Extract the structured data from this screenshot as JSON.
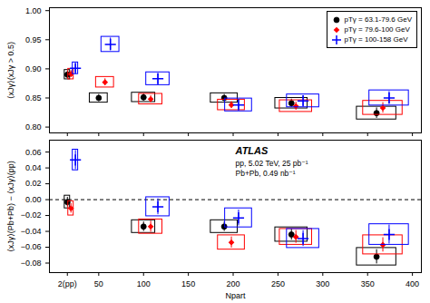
{
  "chart_data": [
    {
      "type": "scatter",
      "ylabel": "⟨xJγ⟩(xJγ > 0.5)",
      "xlim": [
        -5,
        410
      ],
      "xticks": [
        15,
        50,
        100,
        150,
        200,
        250,
        300,
        350,
        400
      ],
      "tick_labels": "y",
      "ylim": [
        0.79,
        1.005
      ],
      "yticks": [
        {
          "value": 0.8,
          "label": "0.80"
        },
        0.85,
        {
          "value": 0.9,
          "label": "0.90"
        },
        0.95,
        {
          "value": 1.0,
          "label": "1.00"
        }
      ],
      "grid": false,
      "legend": "upper right",
      "series": [
        {
          "name": "pTγ = 63.1-79.6 GeV",
          "color": "black",
          "marker": "circle",
          "x": [
            15,
            50,
            100,
            190,
            265,
            360
          ],
          "values": [
            0.89,
            0.85,
            0.851,
            0.85,
            0.841,
            0.824
          ],
          "yerr": [
            0.006,
            0.006,
            0.006,
            0.006,
            0.007,
            0.009
          ],
          "xerr": [
            3,
            10,
            13,
            15,
            18,
            22
          ],
          "box_half_height": [
            0.008,
            0.008,
            0.008,
            0.008,
            0.009,
            0.011
          ]
        },
        {
          "name": "pTγ = 79.6-100 GeV",
          "color": "red",
          "marker": "diamond",
          "x": [
            19,
            57,
            108,
            198,
            270,
            367
          ],
          "values": [
            0.891,
            0.877,
            0.848,
            0.838,
            0.836,
            0.833
          ],
          "yerr": [
            0.006,
            0.006,
            0.006,
            0.006,
            0.007,
            0.009
          ],
          "xerr": [
            3,
            10,
            13,
            15,
            18,
            22
          ],
          "box_half_height": [
            0.009,
            0.009,
            0.009,
            0.009,
            0.01,
            0.012
          ]
        },
        {
          "name": "pTγ = 100-158 GeV",
          "color": "blue",
          "marker": "plus",
          "x": [
            24,
            63,
            116,
            206,
            278,
            374
          ],
          "values": [
            0.901,
            0.942,
            0.883,
            0.838,
            0.845,
            0.85
          ],
          "yerr": [
            0.007,
            0.011,
            0.009,
            0.009,
            0.009,
            0.011
          ],
          "xerr": [
            3,
            10,
            13,
            15,
            18,
            22
          ],
          "box_half_height": [
            0.01,
            0.013,
            0.011,
            0.011,
            0.011,
            0.013
          ]
        }
      ]
    },
    {
      "type": "scatter",
      "xlabel": "Npart",
      "ylabel": "⟨xJγ⟩(Pb+Pb) − ⟨xJγ⟩(pp)",
      "xlim": [
        -5,
        410
      ],
      "xticks": [
        {
          "value": 15,
          "label": "2(pp)"
        },
        50,
        100,
        150,
        200,
        250,
        300,
        350,
        400
      ],
      "ylim": [
        -0.092,
        0.075
      ],
      "yticks": [
        {
          "value": -0.08,
          "label": "−0.08"
        },
        {
          "value": -0.06,
          "label": "−0.06"
        },
        {
          "value": -0.04,
          "label": "−0.04"
        },
        {
          "value": -0.02,
          "label": "−0.02"
        },
        {
          "value": 0.0,
          "label": "0.00"
        },
        0.02,
        0.04,
        0.06
      ],
      "grid": false,
      "reference_lines": [
        {
          "y": 0,
          "line_style": "dashed"
        }
      ],
      "annotations": [
        {
          "text": "ATLAS"
        },
        {
          "text": "pp, 5.02 TeV, 25 pb⁻¹\nPb+Pb, 0.49 nb⁻¹"
        }
      ],
      "series": [
        {
          "name": "pTγ = 63.1-79.6 GeV",
          "color": "black",
          "marker": "circle",
          "x": [
            15,
            100,
            190,
            265,
            360
          ],
          "values": [
            -0.003,
            -0.034,
            -0.034,
            -0.044,
            -0.072
          ],
          "yerr": [
            0.006,
            0.006,
            0.006,
            0.007,
            0.009
          ],
          "xerr": [
            3,
            13,
            15,
            18,
            22
          ],
          "box_half_height": [
            0.008,
            0.008,
            0.008,
            0.009,
            0.011
          ]
        },
        {
          "name": "pTγ = 79.6-100 GeV",
          "color": "red",
          "marker": "diamond",
          "x": [
            19,
            108,
            198,
            270,
            367
          ],
          "values": [
            -0.011,
            -0.034,
            -0.054,
            -0.047,
            -0.057
          ],
          "yerr": [
            0.006,
            0.007,
            0.007,
            0.008,
            0.009
          ],
          "xerr": [
            3,
            13,
            15,
            18,
            22
          ],
          "box_half_height": [
            0.009,
            0.009,
            0.009,
            0.01,
            0.012
          ]
        },
        {
          "name": "pTγ = 100-158 GeV",
          "color": "blue",
          "marker": "plus",
          "x": [
            24,
            116,
            206,
            278,
            374
          ],
          "values": [
            0.05,
            -0.009,
            -0.023,
            -0.049,
            -0.044
          ],
          "yerr": [
            0.012,
            0.01,
            0.01,
            0.01,
            0.012
          ],
          "xerr": [
            3,
            13,
            15,
            18,
            22
          ],
          "box_half_height": [
            0.013,
            0.012,
            0.012,
            0.012,
            0.013
          ]
        }
      ]
    }
  ]
}
